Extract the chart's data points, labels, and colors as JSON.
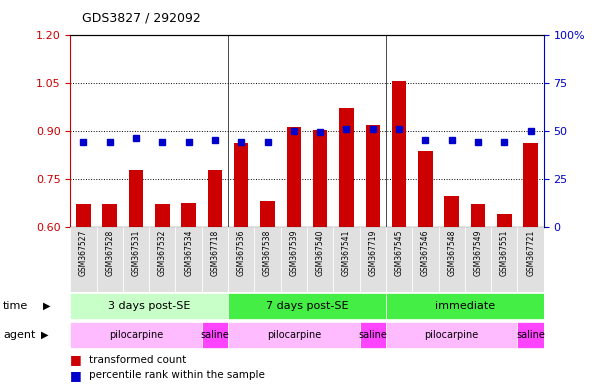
{
  "title": "GDS3827 / 292092",
  "samples": [
    "GSM367527",
    "GSM367528",
    "GSM367531",
    "GSM367532",
    "GSM367534",
    "GSM367718",
    "GSM367536",
    "GSM367538",
    "GSM367539",
    "GSM367540",
    "GSM367541",
    "GSM367719",
    "GSM367545",
    "GSM367546",
    "GSM367548",
    "GSM367549",
    "GSM367551",
    "GSM367721"
  ],
  "bar_values": [
    0.672,
    0.672,
    0.778,
    0.672,
    0.673,
    0.778,
    0.862,
    0.681,
    0.912,
    0.903,
    0.972,
    0.918,
    1.055,
    0.835,
    0.695,
    0.672,
    0.638,
    0.86
  ],
  "dot_values": [
    44,
    44,
    46,
    44,
    44,
    45,
    44,
    44,
    50,
    49,
    51,
    51,
    51,
    45,
    45,
    44,
    44,
    50
  ],
  "bar_color": "#cc0000",
  "dot_color": "#0000cc",
  "ylim_left": [
    0.6,
    1.2
  ],
  "ylim_right": [
    0,
    100
  ],
  "yticks_left": [
    0.6,
    0.75,
    0.9,
    1.05,
    1.2
  ],
  "yticks_right": [
    0,
    25,
    50,
    75,
    100
  ],
  "hlines": [
    0.75,
    0.9,
    1.05
  ],
  "time_groups": [
    {
      "label": "3 days post-SE",
      "start": 0,
      "end": 6,
      "color": "#c8ffc8"
    },
    {
      "label": "7 days post-SE",
      "start": 6,
      "end": 12,
      "color": "#44dd44"
    },
    {
      "label": "immediate",
      "start": 12,
      "end": 18,
      "color": "#44dd44"
    }
  ],
  "agent_groups": [
    {
      "label": "pilocarpine",
      "start": 0,
      "end": 5,
      "color": "#ffbbff"
    },
    {
      "label": "saline",
      "start": 5,
      "end": 6,
      "color": "#ff55ff"
    },
    {
      "label": "pilocarpine",
      "start": 6,
      "end": 11,
      "color": "#ffbbff"
    },
    {
      "label": "saline",
      "start": 11,
      "end": 12,
      "color": "#ff55ff"
    },
    {
      "label": "pilocarpine",
      "start": 12,
      "end": 17,
      "color": "#ffbbff"
    },
    {
      "label": "saline",
      "start": 17,
      "end": 18,
      "color": "#ff55ff"
    }
  ]
}
